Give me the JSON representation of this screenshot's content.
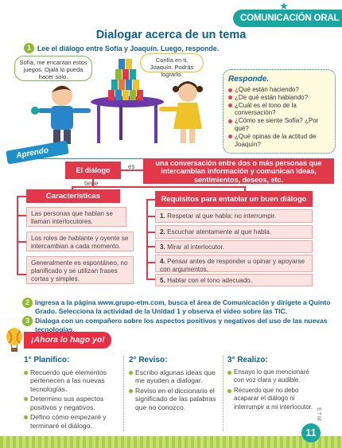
{
  "header": {
    "section_label": "COMUNICACIÓN ORAL",
    "title": "Dialogar acerca de un tema"
  },
  "step1": {
    "number": "1",
    "instruction": "Lee el diálogo entre Sofía y Joaquín. Luego, responde."
  },
  "illustration": {
    "joaquin_speech": "Sofía, me encantan estos juegos. Ojalá lo pueda hacer solo.",
    "sofia_speech": "Confía en ti, Joaquín. Podrás lograrlo."
  },
  "responde": {
    "title": "Responde.",
    "questions": [
      "¿Qué están haciendo?",
      "¿De qué están hablando?",
      "¿Cuál es el tono de la conversación?",
      "¿Cómo se siente Sofía? ¿Por qué?",
      "¿Qué opinas de la actitud de Joaquín?"
    ]
  },
  "aprendo": {
    "tab_label": "Aprendo",
    "concept": "El diálogo",
    "es_label": "es",
    "definition": "una conversación entre dos o más personas que intercambian información y comunican ideas, sentimientos, deseos, etc.",
    "tiene_label": "tiene",
    "caracteristicas": {
      "heading": "Características",
      "items": [
        "Las personas que hablan se llaman interlocutores.",
        "Los roles de hablante y oyente se intercambian a cada momento.",
        "Generalmente es espontáneo, no planificado y se utilizan frases cortas y simples."
      ]
    },
    "requisitos": {
      "heading": "Requisitos para entablar un buen diálogo",
      "items": [
        {
          "num": "1.",
          "text": "Respetar al que habla: no interrumpir."
        },
        {
          "num": "2.",
          "text": "Escuchar atentamente al que habla."
        },
        {
          "num": "3.",
          "text": "Mirar al interlocutor."
        },
        {
          "num": "4.",
          "text": "Pensar antes de responder u opinar y apoyarse con argumentos."
        },
        {
          "num": "5.",
          "text": "Hablar con el tono adecuado."
        }
      ]
    }
  },
  "step2": {
    "number": "2",
    "instruction": "Ingresa a la página www.grupo-etm.com, busca el área de Comunicación y dirígete a Quinto Grado. Selecciona la actividad de la Unidad 1 y observa el video sobre las TIC."
  },
  "step3": {
    "number": "3",
    "instruction": "Dialoga con un compañero sobre los aspectos positivos y negativos del uso de las nuevas tecnologías."
  },
  "ahora": {
    "tab_label": "¡Ahora lo hago yo!",
    "columns": [
      {
        "heading": "1° Planifico:",
        "items": [
          "Recuerdo qué elementos pertenecen a las nuevas tecnologías.",
          "Determino sus aspectos positivos y negativos.",
          "Defino cómo empezaré y terminaré el diálogo."
        ]
      },
      {
        "heading": "2° Reviso:",
        "items": [
          "Escribo algunas ideas que me ayuden a dialogar.",
          "Reviso en el diccionario el significado de las palabras que no conozco."
        ]
      },
      {
        "heading": "3° Realizo:",
        "items": [
          "Ensayo lo que mencionaré con voz clara y audible.",
          "Recuerdo que no debo acaparar el diálogo ni interrumpir a mi interlocutor."
        ]
      }
    ]
  },
  "footer": {
    "page_number": "11",
    "publisher_code": "ETM"
  },
  "colors": {
    "teal": "#18a6a1",
    "blue": "#0e5f8c",
    "red": "#e2394a",
    "green": "#8dbb2e"
  }
}
